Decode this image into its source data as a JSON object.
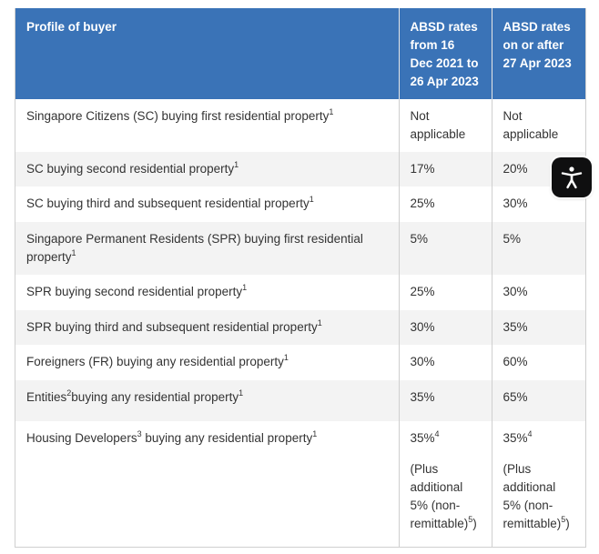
{
  "table": {
    "headers": [
      "Profile of buyer",
      "ABSD rates from 16 Dec 2021 to 26 Apr 2023",
      "ABSD rates on or after 27 Apr 2023"
    ],
    "rows": [
      {
        "profile": "Singapore Citizens (SC) buying first residential property",
        "sup": "1",
        "rate_old": "Not applicable",
        "rate_new": "Not applicable"
      },
      {
        "profile": "SC buying second residential property",
        "sup": "1",
        "rate_old": "17%",
        "rate_new": "20%"
      },
      {
        "profile": "SC buying third and subsequent residential property",
        "sup": "1",
        "rate_old": "25%",
        "rate_new": "30%"
      },
      {
        "profile": "Singapore Permanent Residents (SPR) buying first residential property",
        "sup": "1",
        "rate_old": "5%",
        "rate_new": "5%"
      },
      {
        "profile": "SPR buying second residential property",
        "sup": "1",
        "rate_old": "25%",
        "rate_new": "30%"
      },
      {
        "profile": "SPR buying third and subsequent residential property",
        "sup": "1",
        "rate_old": "30%",
        "rate_new": "35%"
      },
      {
        "profile": "Foreigners (FR) buying any residential property",
        "sup": "1",
        "rate_old": "30%",
        "rate_new": "60%"
      },
      {
        "profile_pre": "Entities",
        "profile_sup": "2",
        "profile_post": "buying any residential property",
        "sup": "1",
        "rate_old": "35%",
        "rate_new": "65%"
      },
      {
        "profile_pre": "Housing Developers",
        "profile_sup": "3",
        "profile_post": " buying any residential property",
        "sup": "1",
        "rate_old": "35%",
        "rate_old_sup": "4",
        "rate_new": "35%",
        "rate_new_sup": "4",
        "note": "(Plus additional 5% (non-remittable)",
        "note_sup": "5",
        "note_close": ")"
      }
    ]
  },
  "accessibility_button": {
    "icon": "accessibility-person-icon"
  }
}
